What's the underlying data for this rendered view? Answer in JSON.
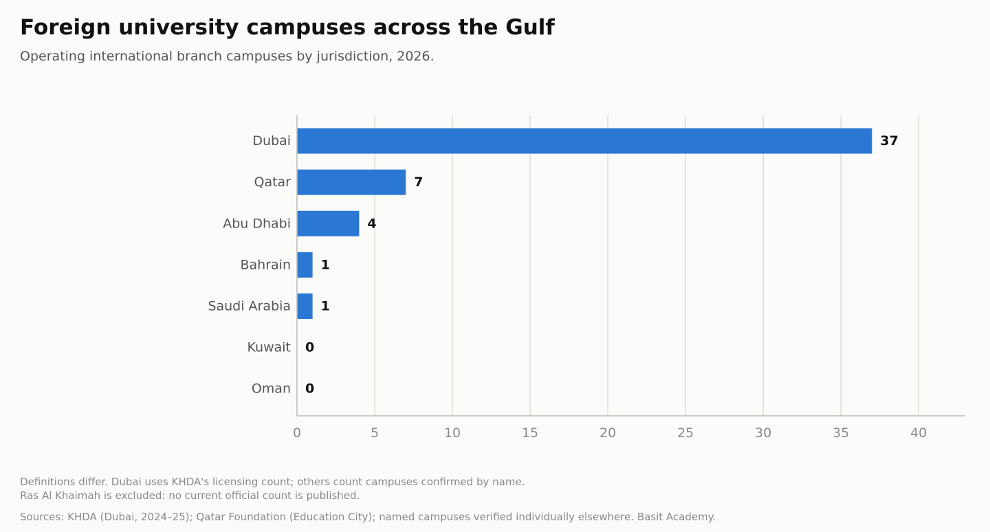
{
  "title": "Foreign university campuses across the Gulf",
  "subtitle": "Operating international branch campuses by jurisdiction, 2026.",
  "notes": [
    "Definitions differ. Dubai uses KHDA's licensing count; others count campuses confirmed by name.",
    "Ras Al Khaimah is excluded: no current official count is published."
  ],
  "source": "Sources: KHDA (Dubai, 2024–25); Qatar Foundation (Education City); named campuses verified individually elsewhere. Basit Academy.",
  "colors": {
    "bar": "#2a78d4",
    "grid": "#dcdcd2",
    "axis": "#bdbdb3",
    "category_label": "#555555",
    "tick_label": "#8a8a8a",
    "value_label": "#111111"
  },
  "chart_data": {
    "type": "bar",
    "orientation": "horizontal",
    "title": "Foreign university campuses across the Gulf",
    "subtitle": "Operating international branch campuses by jurisdiction, 2026.",
    "categories": [
      "Dubai",
      "Qatar",
      "Abu Dhabi",
      "Bahrain",
      "Saudi Arabia",
      "Kuwait",
      "Oman"
    ],
    "values": [
      37,
      7,
      4,
      1,
      1,
      0,
      0
    ],
    "xlabel": "",
    "ylabel": "",
    "xlim": [
      0,
      43
    ],
    "xticks": [
      0,
      5,
      10,
      15,
      20,
      25,
      30,
      35,
      40
    ],
    "grid": "vertical",
    "data_labels": true,
    "legend": "none"
  }
}
